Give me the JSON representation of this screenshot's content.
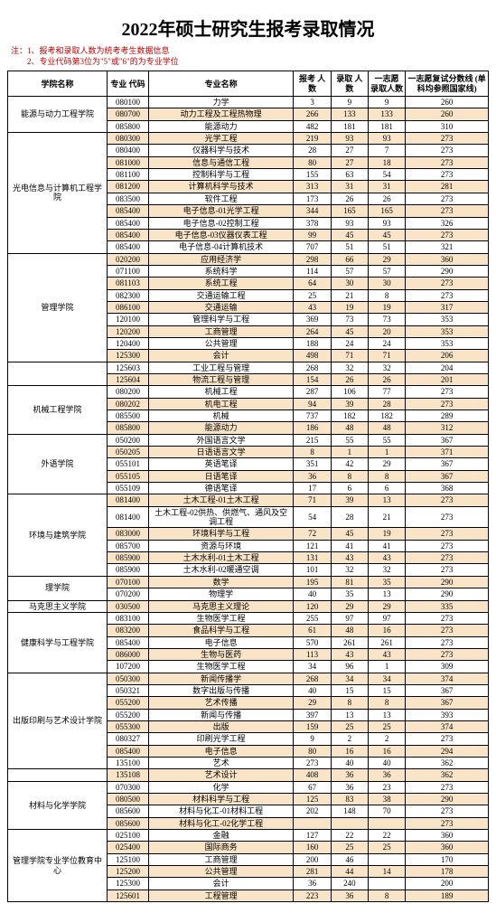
{
  "title": "2022年硕士研究生报考录取情况",
  "notes": [
    "注：1、报考和录取人数为统考考生数据信息",
    "　　2、专业代码第3位为\"5\"或\"6\"的为专业学位"
  ],
  "headers": {
    "college": "学院名称",
    "code": "专业\n代码",
    "major": "专业名称",
    "apply": "报考\n人数",
    "admit": "录取\n人数",
    "first": "一志愿\n录取人数",
    "score": "一志愿复试分数线\n(单科均参照国家线)"
  },
  "colors": {
    "shade": "#f9e4c8",
    "note": "#c00000"
  },
  "rows": [
    {
      "college": "能源与动力工程学院",
      "span": 3,
      "code": "080100",
      "major": "力学",
      "apply": "3",
      "admit": "9",
      "first": "9",
      "score": "260"
    },
    {
      "code": "080700",
      "major": "动力工程及工程热物理",
      "apply": "266",
      "admit": "133",
      "first": "133",
      "score": "260"
    },
    {
      "code": "085800",
      "major": "能源动力",
      "apply": "482",
      "admit": "181",
      "first": "181",
      "score": "310"
    },
    {
      "college": "光电信息与计算机工程学院",
      "span": 10,
      "code": "080300",
      "major": "光学工程",
      "apply": "219",
      "admit": "93",
      "first": "93",
      "score": "273"
    },
    {
      "code": "080400",
      "major": "仪器科学与技术",
      "apply": "28",
      "admit": "27",
      "first": "7",
      "score": "273"
    },
    {
      "code": "081000",
      "major": "信息与通信工程",
      "apply": "80",
      "admit": "27",
      "first": "18",
      "score": "273"
    },
    {
      "code": "081100",
      "major": "控制科学与工程",
      "apply": "155",
      "admit": "63",
      "first": "54",
      "score": "273"
    },
    {
      "code": "081200",
      "major": "计算机科学与技术",
      "apply": "313",
      "admit": "31",
      "first": "31",
      "score": "281"
    },
    {
      "code": "083500",
      "major": "软件工程",
      "apply": "173",
      "admit": "26",
      "first": "26",
      "score": "273"
    },
    {
      "code": "085400",
      "major": "电子信息-01光学工程",
      "apply": "344",
      "admit": "165",
      "first": "165",
      "score": "273"
    },
    {
      "code": "085400",
      "major": "电子信息-02控制工程",
      "apply": "378",
      "admit": "93",
      "first": "93",
      "score": "326"
    },
    {
      "code": "085400",
      "major": "电子信息-03仪器仪表工程",
      "apply": "99",
      "admit": "45",
      "first": "45",
      "score": "273"
    },
    {
      "code": "085400",
      "major": "电子信息-04计算机技术",
      "apply": "707",
      "admit": "51",
      "first": "51",
      "score": "321"
    },
    {
      "college": "管理学院",
      "span": 9,
      "code": "020200",
      "major": "应用经济学",
      "apply": "298",
      "admit": "66",
      "first": "29",
      "score": "360"
    },
    {
      "code": "071100",
      "major": "系统科学",
      "apply": "114",
      "admit": "57",
      "first": "57",
      "score": "290"
    },
    {
      "code": "081103",
      "major": "系统工程",
      "apply": "64",
      "admit": "30",
      "first": "30",
      "score": "273"
    },
    {
      "code": "082300",
      "major": "交通运输工程",
      "apply": "25",
      "admit": "21",
      "first": "8",
      "score": "273"
    },
    {
      "code": "086100",
      "major": "交通运输",
      "apply": "43",
      "admit": "19",
      "first": "19",
      "score": "317"
    },
    {
      "code": "120100",
      "major": "管理科学与工程",
      "apply": "369",
      "admit": "73",
      "first": "73",
      "score": "353"
    },
    {
      "code": "120200",
      "major": "工商管理",
      "apply": "264",
      "admit": "45",
      "first": "20",
      "score": "353"
    },
    {
      "code": "120400",
      "major": "公共管理",
      "apply": "188",
      "admit": "24",
      "first": "24",
      "score": "353"
    },
    {
      "code": "125300",
      "major": "会计",
      "apply": "498",
      "admit": "71",
      "first": "71",
      "score": "206"
    },
    {
      "college": "",
      "span": 2,
      "code": "125603",
      "major": "工业工程与管理",
      "apply": "268",
      "admit": "32",
      "first": "32",
      "score": "204",
      "mergeUp": true
    },
    {
      "code": "125604",
      "major": "物流工程与管理",
      "apply": "154",
      "admit": "26",
      "first": "26",
      "score": "201"
    },
    {
      "college": "机械工程学院",
      "span": 4,
      "code": "080200",
      "major": "机械工程",
      "apply": "287",
      "admit": "106",
      "first": "77",
      "score": "273"
    },
    {
      "code": "080202",
      "major": "机电工程",
      "apply": "94",
      "admit": "39",
      "first": "28",
      "score": "273"
    },
    {
      "code": "085500",
      "major": "机械",
      "apply": "737",
      "admit": "182",
      "first": "182",
      "score": "289"
    },
    {
      "code": "085800",
      "major": "能源动力",
      "apply": "186",
      "admit": "48",
      "first": "48",
      "score": "312"
    },
    {
      "college": "外语学院",
      "span": 5,
      "code": "050200",
      "major": "外国语言文学",
      "apply": "215",
      "admit": "55",
      "first": "55",
      "score": "367"
    },
    {
      "code": "050205",
      "major": "日语语言文学",
      "apply": "8",
      "admit": "1",
      "first": "1",
      "score": "371"
    },
    {
      "code": "055101",
      "major": "英语笔译",
      "apply": "351",
      "admit": "42",
      "first": "29",
      "score": "367"
    },
    {
      "code": "055105",
      "major": "日语笔译",
      "apply": "36",
      "admit": "8",
      "first": "8",
      "score": "367"
    },
    {
      "code": "055109",
      "major": "德语笔译",
      "apply": "17",
      "admit": "6",
      "first": "6",
      "score": "368"
    },
    {
      "college": "环境与建筑学院",
      "span": 6,
      "code": "081400",
      "major": "土木工程-01土木工程",
      "apply": "71",
      "admit": "39",
      "first": "13",
      "score": "273"
    },
    {
      "code": "081400",
      "major": "土木工程-02供热、供燃气、通风及空调工程",
      "apply": "54",
      "admit": "28",
      "first": "21",
      "score": "273"
    },
    {
      "code": "083000",
      "major": "环境科学与工程",
      "apply": "72",
      "admit": "45",
      "first": "19",
      "score": "273"
    },
    {
      "code": "085700",
      "major": "资源与环境",
      "apply": "121",
      "admit": "41",
      "first": "41",
      "score": "273"
    },
    {
      "code": "085900",
      "major": "土木水利-01土木工程",
      "apply": "131",
      "admit": "43",
      "first": "43",
      "score": "273"
    },
    {
      "code": "085900",
      "major": "土木水利-02暖通空调",
      "apply": "101",
      "admit": "32",
      "first": "32",
      "score": "273"
    },
    {
      "college": "理学院",
      "span": 2,
      "code": "070100",
      "major": "数学",
      "apply": "195",
      "admit": "81",
      "first": "35",
      "score": "290"
    },
    {
      "code": "070200",
      "major": "物理学",
      "apply": "40",
      "admit": "35",
      "first": "13",
      "score": "290"
    },
    {
      "college": "马克思主义学院",
      "span": 1,
      "code": "030500",
      "major": "马克思主义理论",
      "apply": "120",
      "admit": "29",
      "first": "29",
      "score": "335"
    },
    {
      "college": "健康科学与工程学院",
      "span": 5,
      "code": "083100",
      "major": "生物医学工程",
      "apply": "255",
      "admit": "97",
      "first": "97",
      "score": "273"
    },
    {
      "code": "083200",
      "major": "食品科学与工程",
      "apply": "61",
      "admit": "48",
      "first": "16",
      "score": "273"
    },
    {
      "code": "085400",
      "major": "电子信息",
      "apply": "570",
      "admit": "261",
      "first": "261",
      "score": "273"
    },
    {
      "code": "086000",
      "major": "生物与医药",
      "apply": "113",
      "admit": "43",
      "first": "43",
      "score": "273"
    },
    {
      "code": "107200",
      "major": "生物医学工程",
      "apply": "34",
      "admit": "96",
      "first": "1",
      "score": "309"
    },
    {
      "college": "出版印刷与艺术设计学院",
      "span": 8,
      "code": "050300",
      "major": "新闻传播学",
      "apply": "268",
      "admit": "34",
      "first": "34",
      "score": "374"
    },
    {
      "code": "050321",
      "major": "数字出版与传播",
      "apply": "40",
      "admit": "15",
      "first": "15",
      "score": "367"
    },
    {
      "code": "055200",
      "major": "艺术传播",
      "apply": "29",
      "admit": "8",
      "first": "8",
      "score": "367"
    },
    {
      "code": "055200",
      "major": "新闻与传播",
      "apply": "397",
      "admit": "13",
      "first": "13",
      "score": "393"
    },
    {
      "code": "055300",
      "major": "出版",
      "apply": "159",
      "admit": "25",
      "first": "25",
      "score": "374"
    },
    {
      "code": "080327",
      "major": "印刷光学工程",
      "apply": "9",
      "admit": "2",
      "first": "2",
      "score": "273"
    },
    {
      "code": "085400",
      "major": "电子信息",
      "apply": "80",
      "admit": "16",
      "first": "16",
      "score": "294"
    },
    {
      "code": "135100",
      "major": "艺术",
      "apply": "273",
      "admit": "40",
      "first": "40",
      "score": "362"
    },
    {
      "college": "",
      "span": 1,
      "code": "135108",
      "major": "艺术设计",
      "apply": "408",
      "admit": "36",
      "first": "36",
      "score": "362",
      "mergeUp": true
    },
    {
      "college": "材料与化学学院",
      "span": 4,
      "code": "070300",
      "major": "化学",
      "apply": "67",
      "admit": "36",
      "first": "23",
      "score": "273"
    },
    {
      "code": "080500",
      "major": "材料科学与工程",
      "apply": "125",
      "admit": "83",
      "first": "38",
      "score": "290"
    },
    {
      "code": "085600",
      "major": "材料与化工-01材料工程",
      "apply": "202",
      "admit": "148",
      "first": "70",
      "score": "273"
    },
    {
      "code": "085600",
      "major": "材料与化工-02化学工程",
      "apply": "",
      "admit": "",
      "first": "",
      "score": "273"
    },
    {
      "college": "管理学院专业学位教育中心",
      "span": 6,
      "code": "025100",
      "major": "金融",
      "apply": "127",
      "admit": "22",
      "first": "22",
      "score": "360"
    },
    {
      "code": "025400",
      "major": "国际商务",
      "apply": "160",
      "admit": "25",
      "first": "25",
      "score": "360"
    },
    {
      "code": "125100",
      "major": "工商管理",
      "apply": "200",
      "admit": "46",
      "first": "",
      "score": "170"
    },
    {
      "code": "125200",
      "major": "公共管理",
      "apply": "281",
      "admit": "44",
      "first": "14",
      "score": "178"
    },
    {
      "code": "125300",
      "major": "会计",
      "apply": "36",
      "admit": "240",
      "first": "",
      "score": "200"
    },
    {
      "code": "125601",
      "major": "工程管理",
      "apply": "223",
      "admit": "36",
      "first": "8",
      "score": "189"
    }
  ]
}
